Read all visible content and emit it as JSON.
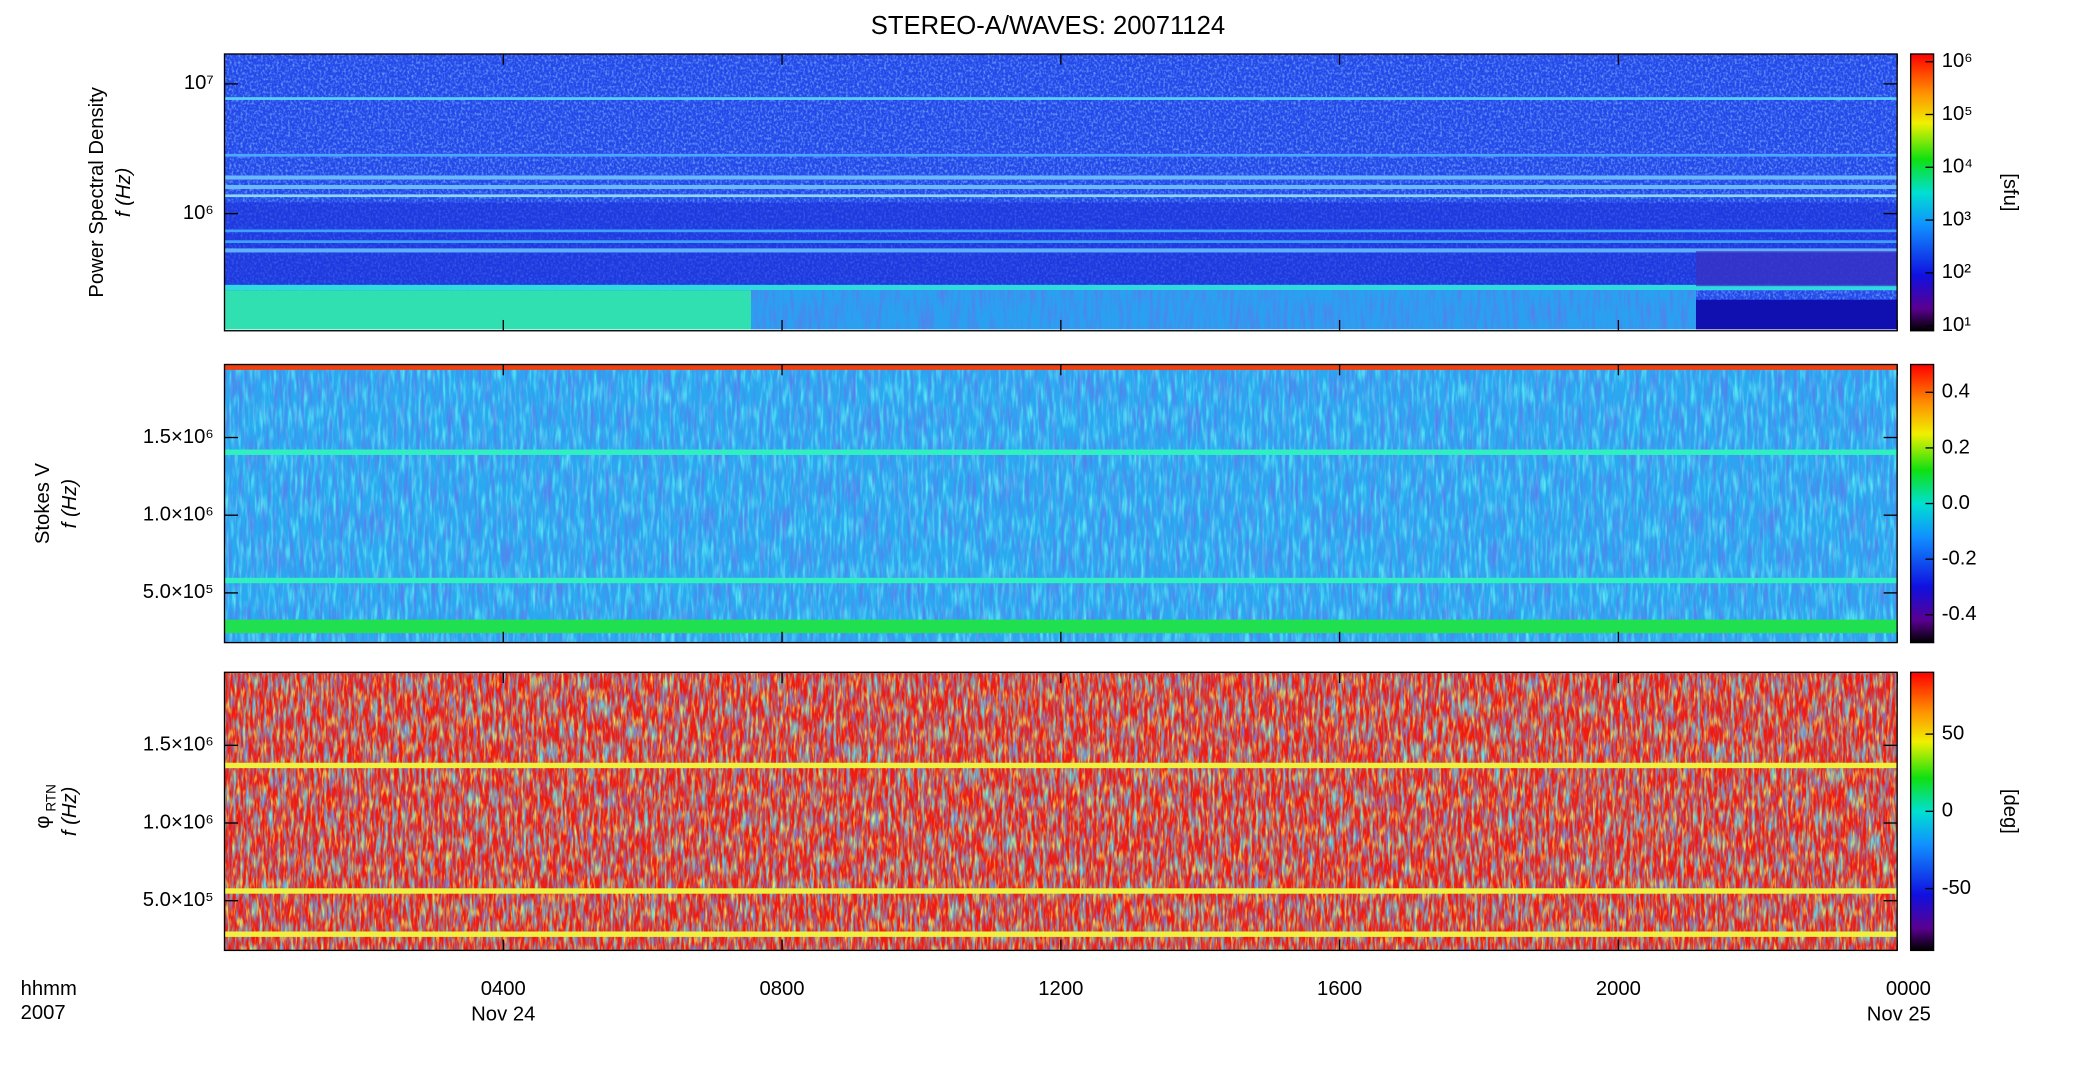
{
  "chart_data": [
    {
      "type": "spectrogram",
      "title": "STEREO-A/WAVES: 20071124",
      "ylabel": "Power Spectral Density",
      "ylabel2": "f (Hz)",
      "log_y": true,
      "ylim": [
        125000,
        17000000
      ],
      "yticks": [
        {
          "value": 1000000,
          "label": "10⁶"
        },
        {
          "value": 10000000,
          "label": "10⁷"
        }
      ],
      "log_c": true,
      "clim": [
        8,
        1400000
      ],
      "clabel": "[sfu]",
      "cticks": [
        {
          "value": 10,
          "label": "10¹"
        },
        {
          "value": 100,
          "label": "10²"
        },
        {
          "value": 1000,
          "label": "10³"
        },
        {
          "value": 10000,
          "label": "10⁴"
        },
        {
          "value": 100000,
          "label": "10⁵"
        },
        {
          "value": 1000000,
          "label": "10⁶"
        }
      ]
    },
    {
      "type": "spectrogram",
      "ylabel": "Stokes V",
      "ylabel2": "f (Hz)",
      "log_y": false,
      "ylim": [
        180000,
        1970000
      ],
      "yticks": [
        {
          "value": 500000,
          "label": "5.0×10⁵"
        },
        {
          "value": 1000000,
          "label": "1.0×10⁶"
        },
        {
          "value": 1500000,
          "label": "1.5×10⁶"
        }
      ],
      "log_c": false,
      "clim": [
        -0.5,
        0.5
      ],
      "cticks": [
        -0.4,
        -0.2,
        {
          "value": 0,
          "label": "0.0"
        },
        0.2,
        0.4
      ]
    },
    {
      "type": "spectrogram",
      "ylabel": "φ",
      "ylabel_subscript": "RTN",
      "ylabel2": "f (Hz)",
      "log_y": false,
      "ylim": [
        180000,
        1970000
      ],
      "yticks": [
        {
          "value": 500000,
          "label": "5.0×10⁵"
        },
        {
          "value": 1000000,
          "label": "1.0×10⁶"
        },
        {
          "value": 1500000,
          "label": "1.5×10⁶"
        }
      ],
      "log_c": false,
      "clim": [
        -90,
        90
      ],
      "clabel": "[deg]",
      "cticks": [
        -50,
        0,
        50
      ],
      "xlim": [
        0,
        24
      ],
      "xticks": [
        {
          "value": 4,
          "label": "0400"
        },
        {
          "value": 8,
          "label": "0800"
        },
        {
          "value": 12,
          "label": "1200"
        },
        {
          "value": 16,
          "label": "1600"
        },
        {
          "value": 20,
          "label": "2000"
        },
        {
          "value": 24,
          "label": "0000"
        }
      ],
      "xtick_sublabels": [
        "Nov 24",
        null,
        null,
        null,
        null,
        "Nov 25"
      ],
      "xlabel": "hhmm",
      "xlabel2": "2007"
    }
  ]
}
